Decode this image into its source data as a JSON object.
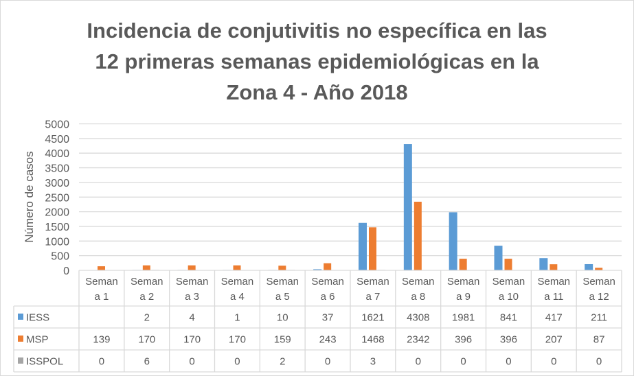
{
  "chart_data": {
    "type": "bar",
    "title_lines": [
      "Incidencia de conjutivitis no específica en las",
      "12 primeras semanas epidemiológicas en la",
      "Zona 4 - Año 2018"
    ],
    "xlabel": "",
    "ylabel": "Número de casos",
    "ylim": [
      0,
      5000
    ],
    "yticks": [
      0,
      500,
      1000,
      1500,
      2000,
      2500,
      3000,
      3500,
      4000,
      4500,
      5000
    ],
    "grid": true,
    "legend": "data-table",
    "categories": [
      [
        "Seman",
        "a 1"
      ],
      [
        "Seman",
        "a 2"
      ],
      [
        "Seman",
        "a 3"
      ],
      [
        "Seman",
        "a 4"
      ],
      [
        "Seman",
        "a 5"
      ],
      [
        "Seman",
        "a 6"
      ],
      [
        "Seman",
        "a 7"
      ],
      [
        "Seman",
        "a 8"
      ],
      [
        "Seman",
        "a 9"
      ],
      [
        "Seman",
        "a 10"
      ],
      [
        "Seman",
        "a 11"
      ],
      [
        "Seman",
        "a 12"
      ]
    ],
    "series": [
      {
        "name": "IESS",
        "color": "#5B9BD5",
        "values": [
          null,
          2,
          4,
          1,
          10,
          37,
          1621,
          4308,
          1981,
          841,
          417,
          211
        ]
      },
      {
        "name": "MSP",
        "color": "#ED7D31",
        "values": [
          139,
          170,
          170,
          170,
          159,
          243,
          1468,
          2342,
          396,
          396,
          207,
          87
        ]
      },
      {
        "name": "ISSPOL",
        "color": "#A5A5A5",
        "values": [
          0,
          6,
          0,
          0,
          2,
          0,
          3,
          0,
          0,
          0,
          0,
          0
        ]
      }
    ]
  }
}
